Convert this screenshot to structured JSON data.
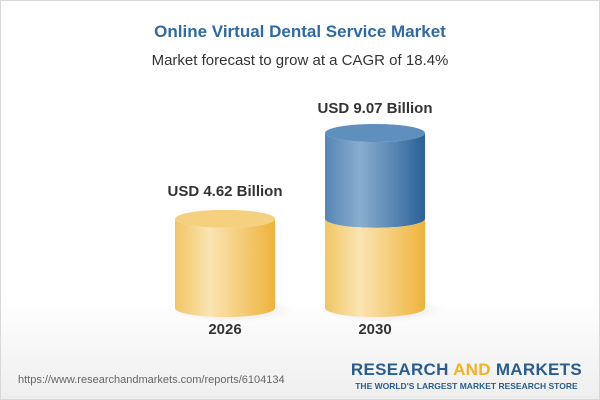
{
  "title": "Online Virtual Dental Service Market",
  "subtitle": "Market forecast to grow at a CAGR of 18.4%",
  "url": "https://www.researchandmarkets.com/reports/6104134",
  "logo": {
    "part1": "RESEARCH ",
    "part2": "AND",
    "part3": " MARKETS",
    "tagline": "THE WORLD'S LARGEST MARKET RESEARCH STORE"
  },
  "colors": {
    "title": "#2f6aa3",
    "base": "#f2c55c",
    "growth": "#4a7fb0",
    "logo_accent": "#f0b323"
  },
  "chart_data": {
    "type": "bar",
    "style": "3d-cylinder",
    "title": "Online Virtual Dental Service Market",
    "subtitle": "Market forecast to grow at a CAGR of 18.4%",
    "categories": [
      "2026",
      "2030"
    ],
    "values": [
      4.62,
      9.07
    ],
    "data_labels": [
      "USD 4.62 Billion",
      "USD 9.07 Billion"
    ],
    "unit": "USD Billion",
    "cagr": "18.4%",
    "grid": false,
    "legend": "none"
  }
}
